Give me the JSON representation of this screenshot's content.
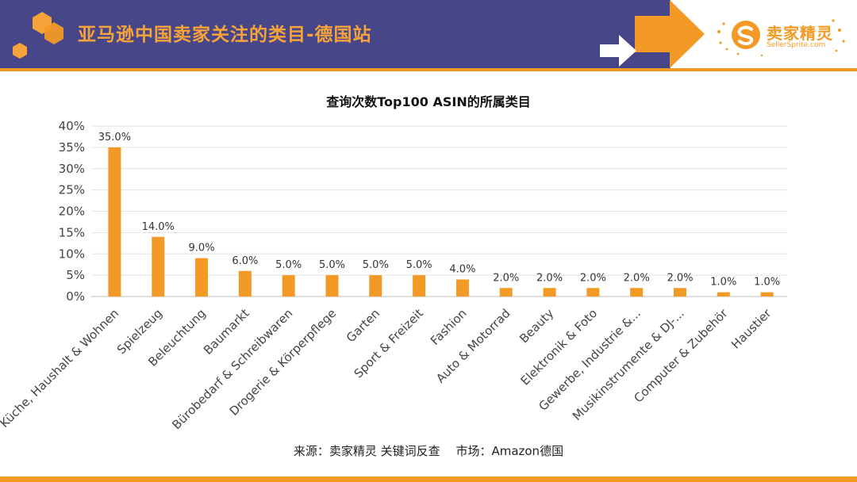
{
  "header": {
    "title": "亚马逊中国卖家关注的类目-德国站",
    "band_color": "#474689",
    "accent_color": "#f39a26"
  },
  "logo": {
    "name_cn": "卖家精灵",
    "name_en": "SellerSprite.com",
    "icon": "sellersprite-logo-icon"
  },
  "chart_data": {
    "type": "bar",
    "title": "查询次数Top100 ASIN的所属类目",
    "xlabel": "",
    "ylabel": "",
    "ylim": [
      0,
      40
    ],
    "yticks": [
      0,
      5,
      10,
      15,
      20,
      25,
      30,
      35,
      40
    ],
    "ytick_labels": [
      "0%",
      "5%",
      "10%",
      "15%",
      "20%",
      "25%",
      "30%",
      "35%",
      "40%"
    ],
    "grid": true,
    "bar_color": "#f39a26",
    "categories": [
      "Küche, Haushalt & Wohnen",
      "Spielzeug",
      "Beleuchtung",
      "Baumarkt",
      "Bürobedarf & Schreibwaren",
      "Drogerie & Körperpflege",
      "Garten",
      "Sport & Freizeit",
      "Fashion",
      "Auto & Motorrad",
      "Beauty",
      "Elektronik & Foto",
      "Gewerbe, Industrie &...",
      "Musikinstrumente & DJ-...",
      "Computer & Zubehör",
      "Haustier"
    ],
    "values": [
      35,
      14,
      9,
      6,
      5,
      5,
      5,
      5,
      4,
      2,
      2,
      2,
      2,
      2,
      1,
      1
    ],
    "data_labels": [
      "35.0%",
      "14.0%",
      "9.0%",
      "6.0%",
      "5.0%",
      "5.0%",
      "5.0%",
      "5.0%",
      "4.0%",
      "2.0%",
      "2.0%",
      "2.0%",
      "2.0%",
      "2.0%",
      "1.0%",
      "1.0%"
    ]
  },
  "source": {
    "text": "来源：卖家精灵 关键词反查　 市场：Amazon德国"
  }
}
